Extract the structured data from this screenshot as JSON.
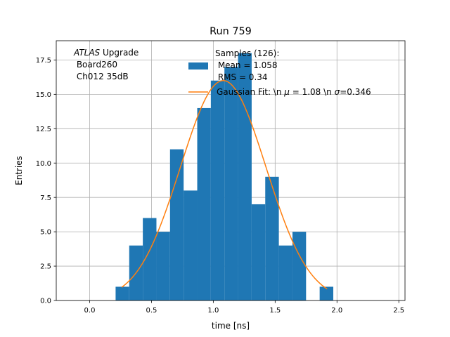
{
  "chart_data": {
    "type": "bar",
    "title": "Run 759",
    "xlabel": "time [ns]",
    "ylabel": "Entries",
    "xlim": [
      -0.27,
      2.55
    ],
    "ylim": [
      0,
      18.9
    ],
    "grid": true,
    "xticks": [
      0.0,
      0.5,
      1.0,
      1.5,
      2.0,
      2.5
    ],
    "xtick_labels": [
      "0.0",
      "0.5",
      "1.0",
      "1.5",
      "2.0",
      "2.5"
    ],
    "yticks": [
      0.0,
      2.5,
      5.0,
      7.5,
      10.0,
      12.5,
      15.0,
      17.5
    ],
    "ytick_labels": [
      "0.0",
      "2.5",
      "5.0",
      "7.5",
      "10.0",
      "12.5",
      "15.0",
      "17.5"
    ],
    "bar_color": "#1f77b4",
    "fit_color": "#ff7f0e",
    "histogram": {
      "bin_edges": [
        0.21,
        0.32,
        0.43,
        0.54,
        0.65,
        0.76,
        0.87,
        0.98,
        1.09,
        1.2,
        1.31,
        1.42,
        1.53,
        1.64,
        1.75,
        1.86,
        1.97
      ],
      "counts": [
        1,
        4,
        6,
        5,
        11,
        8,
        14,
        16,
        17,
        18,
        7,
        9,
        4,
        5,
        0,
        1
      ]
    },
    "fit": {
      "mu": 1.08,
      "sigma": 0.346,
      "amplitude": 16.0,
      "x_start": 0.26,
      "x_end": 1.92
    },
    "annotation": {
      "line1_italic": "ATLAS",
      "line1_rest": " Upgrade",
      "line2": " Board260",
      "line3": " Ch012 35dB"
    },
    "legend": {
      "position": "top-center",
      "hist_label_lines": [
        "Samples (126):",
        " Mean = 1.058",
        " RMS = 0.34"
      ],
      "fit_label_prefix": "Gaussian Fit: \\n ",
      "fit_label_mu_symbol": "μ",
      "fit_label_mid": " = 1.08 \\n ",
      "fit_label_sigma_symbol": "σ",
      "fit_label_end": "=0.346"
    }
  }
}
